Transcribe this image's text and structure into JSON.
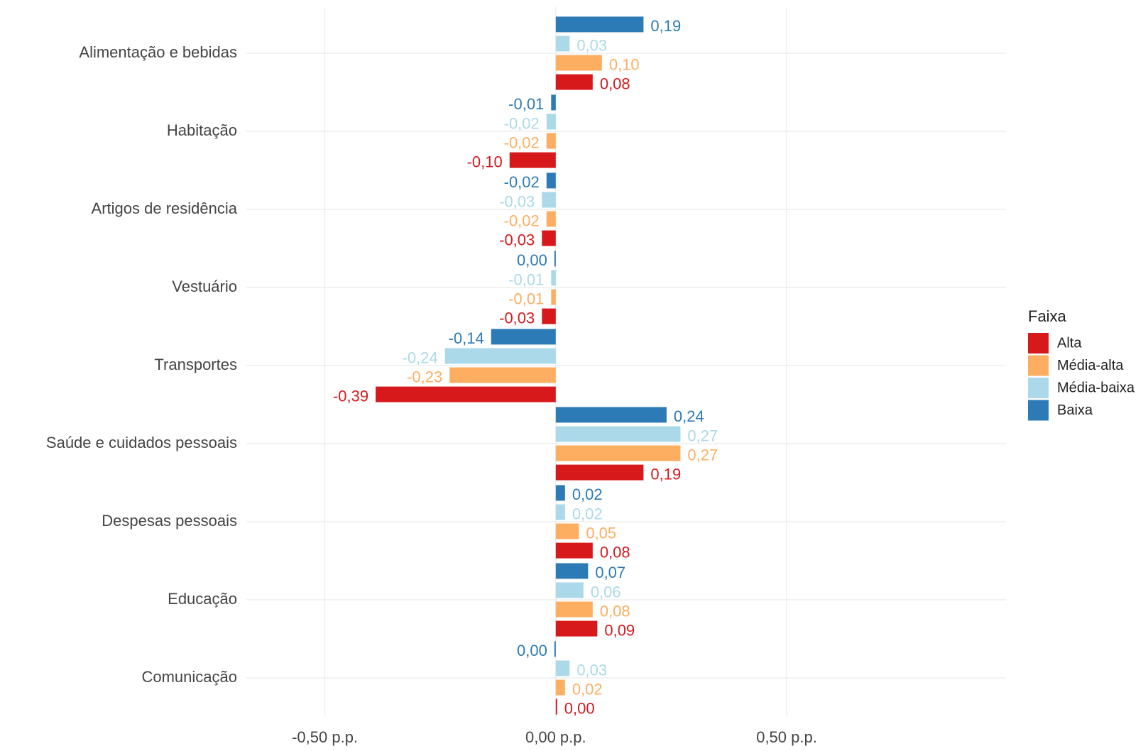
{
  "chart_data": {
    "type": "barh",
    "categories": [
      "Alimentação e bebidas",
      "Habitação",
      "Artigos de residência",
      "Vestuário",
      "Transportes",
      "Saúde e cuidados pessoais",
      "Despesas pessoais",
      "Educação",
      "Comunicação"
    ],
    "series": [
      {
        "name": "Alta",
        "color": "#d7191c",
        "values": [
          0.08,
          -0.1,
          -0.03,
          -0.03,
          -0.39,
          0.19,
          0.08,
          0.09,
          0.003
        ],
        "value_labels": [
          "0,08",
          "-0,10",
          "-0,03",
          "-0,03",
          "-0,39",
          "0,19",
          "0,08",
          "0,09",
          "0,00"
        ]
      },
      {
        "name": "Média-alta",
        "color": "#fdae61",
        "values": [
          0.1,
          -0.02,
          -0.02,
          -0.01,
          -0.23,
          0.27,
          0.05,
          0.08,
          0.02
        ],
        "value_labels": [
          "0,10",
          "-0,02",
          "-0,02",
          "-0,01",
          "-0,23",
          "0,27",
          "0,05",
          "0,08",
          "0,02"
        ]
      },
      {
        "name": "Média-baixa",
        "color": "#abd9e9",
        "values": [
          0.03,
          -0.02,
          -0.03,
          -0.01,
          -0.24,
          0.27,
          0.02,
          0.06,
          0.03
        ],
        "value_labels": [
          "0,03",
          "-0,02",
          "-0,03",
          "-0,01",
          "-0,24",
          "0,27",
          "0,02",
          "0,06",
          "0,03"
        ]
      },
      {
        "name": "Baixa",
        "color": "#2c7bb6",
        "values": [
          0.19,
          -0.01,
          -0.02,
          -0.003,
          -0.14,
          0.24,
          0.02,
          0.07,
          -0.003
        ],
        "value_labels": [
          "0,19",
          "-0,01",
          "-0,02",
          "0,00",
          "-0,14",
          "0,24",
          "0,02",
          "0,07",
          "0,00"
        ]
      }
    ],
    "xlim": [
      -0.67,
      0.975
    ],
    "xticks": [
      {
        "value": -0.5,
        "label": "-0,50 p.p."
      },
      {
        "value": 0,
        "label": "0,00 p.p."
      },
      {
        "value": 0.5,
        "label": "0,50 p.p."
      }
    ],
    "legend_title": "Faixa",
    "legend": "right",
    "grid": true
  }
}
